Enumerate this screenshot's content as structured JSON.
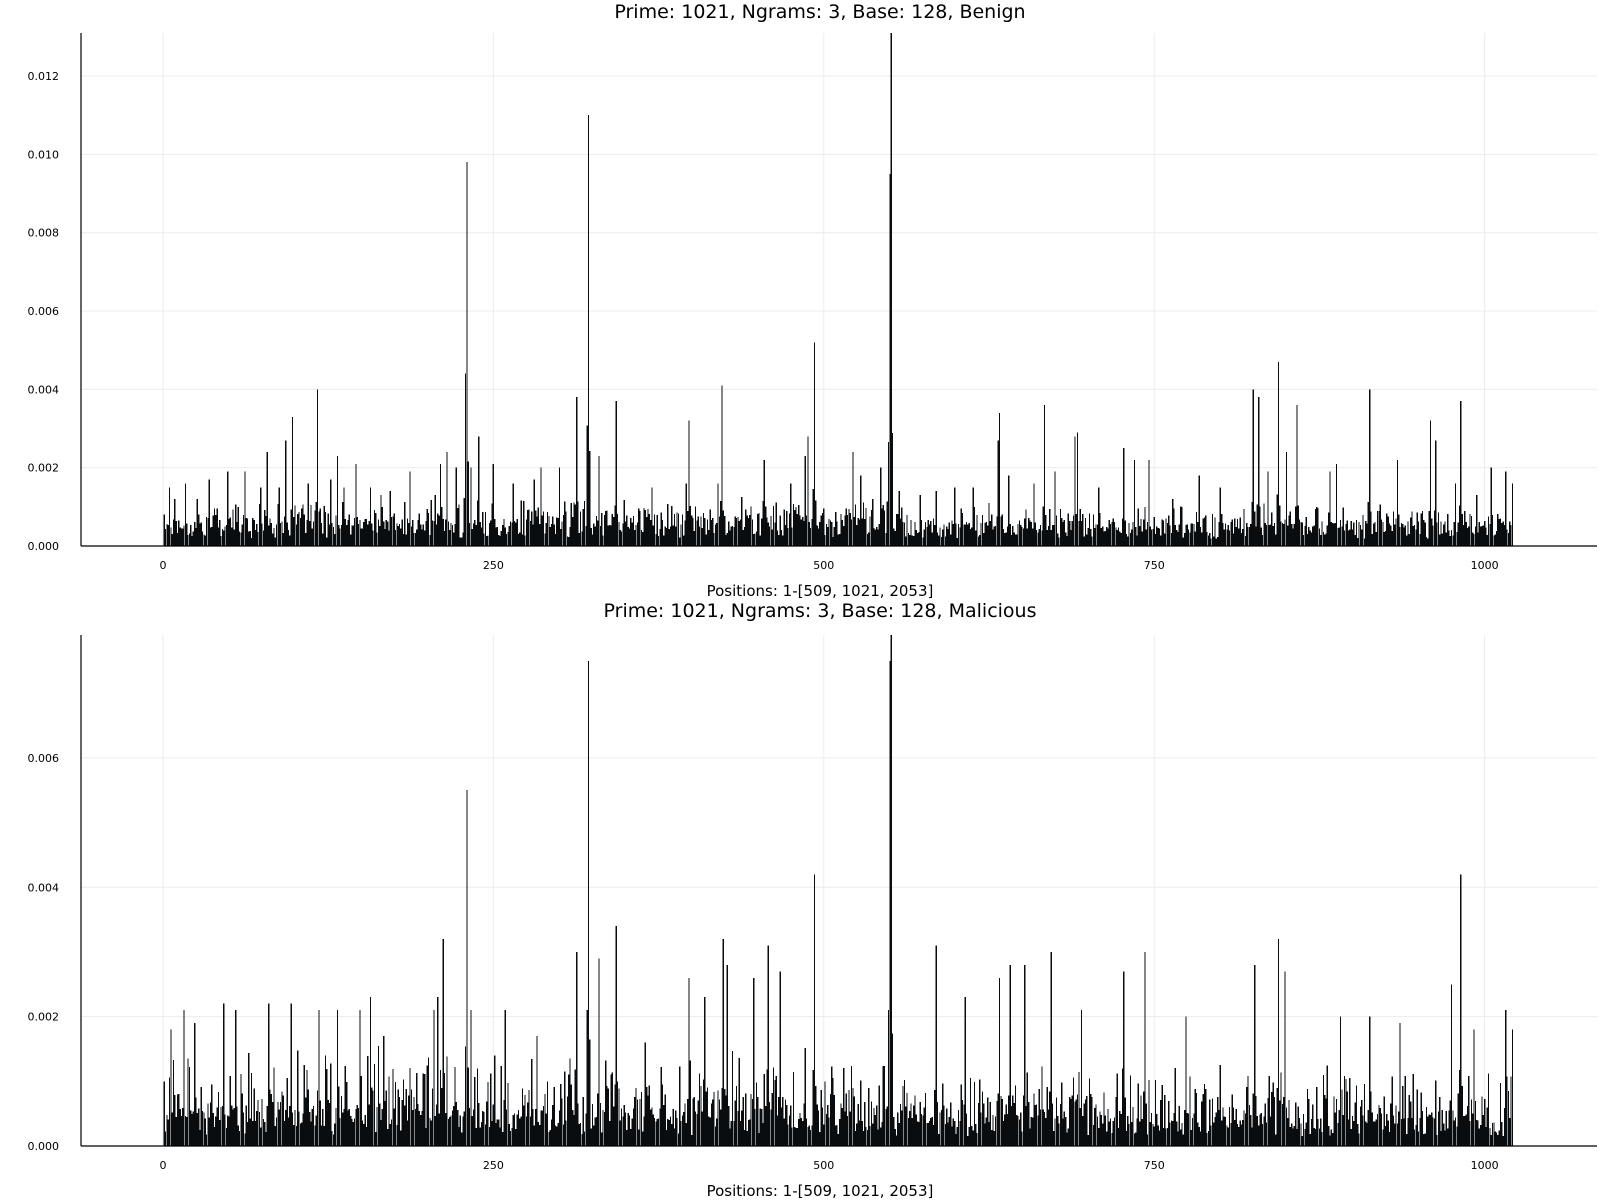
{
  "chart_data": [
    {
      "type": "bar",
      "title": "Prime: 1021, Ngrams: 3, Base: 128, Benign",
      "xlabel": "Positions: 1-[509, 1021, 2053]",
      "ylabel": "",
      "xlim": [
        -62,
        1085
      ],
      "ylim": [
        0,
        0.0131
      ],
      "xticks": [
        0,
        250,
        500,
        750,
        1000
      ],
      "xtick_labels": [
        "0",
        "250",
        "500",
        "750",
        "1000"
      ],
      "yticks": [
        0,
        0.002,
        0.004,
        0.006,
        0.008,
        0.01,
        0.012
      ],
      "ytick_labels": [
        "0.000",
        "0.002",
        "0.004",
        "0.006",
        "0.008",
        "0.010",
        "0.012"
      ],
      "grid": true,
      "legend": "none",
      "bar_color": "#0a0d10",
      "n_positions": 1021,
      "peaks": [
        [
          1,
          0.0008
        ],
        [
          5,
          0.0015
        ],
        [
          9,
          0.0012
        ],
        [
          17,
          0.0016
        ],
        [
          26,
          0.0012
        ],
        [
          35,
          0.0017
        ],
        [
          49,
          0.0019
        ],
        [
          62,
          0.0019
        ],
        [
          74,
          0.0015
        ],
        [
          79,
          0.0024
        ],
        [
          88,
          0.0015
        ],
        [
          93,
          0.0027
        ],
        [
          98,
          0.0033
        ],
        [
          110,
          0.0016
        ],
        [
          117,
          0.004
        ],
        [
          127,
          0.0017
        ],
        [
          132,
          0.0023
        ],
        [
          137,
          0.0015
        ],
        [
          146,
          0.0021
        ],
        [
          157,
          0.0015
        ],
        [
          165,
          0.0013
        ],
        [
          172,
          0.0014
        ],
        [
          187,
          0.0019
        ],
        [
          206,
          0.0013
        ],
        [
          210,
          0.0021
        ],
        [
          215,
          0.0024
        ],
        [
          222,
          0.002
        ],
        [
          229,
          0.0044
        ],
        [
          230,
          0.0098
        ],
        [
          233,
          0.002
        ],
        [
          239,
          0.0028
        ],
        [
          250,
          0.0021
        ],
        [
          265,
          0.0016
        ],
        [
          281,
          0.0017
        ],
        [
          286,
          0.002
        ],
        [
          300,
          0.002
        ],
        [
          313,
          0.0038
        ],
        [
          322,
          0.011
        ],
        [
          330,
          0.0023
        ],
        [
          343,
          0.0037
        ],
        [
          370,
          0.0015
        ],
        [
          396,
          0.0016
        ],
        [
          398,
          0.0032
        ],
        [
          420,
          0.0016
        ],
        [
          423,
          0.0041
        ],
        [
          455,
          0.0022
        ],
        [
          475,
          0.0016
        ],
        [
          486,
          0.0023
        ],
        [
          488,
          0.0028
        ],
        [
          493,
          0.0052
        ],
        [
          522,
          0.0024
        ],
        [
          528,
          0.0018
        ],
        [
          543,
          0.002
        ],
        [
          550,
          0.0095
        ],
        [
          551,
          0.0131
        ],
        [
          557,
          0.0014
        ],
        [
          573,
          0.0013
        ],
        [
          585,
          0.0014
        ],
        [
          599,
          0.0015
        ],
        [
          613,
          0.0015
        ],
        [
          625,
          0.0011
        ],
        [
          632,
          0.0027
        ],
        [
          633,
          0.0034
        ],
        [
          640,
          0.0018
        ],
        [
          659,
          0.0016
        ],
        [
          667,
          0.0036
        ],
        [
          675,
          0.0019
        ],
        [
          690,
          0.0028
        ],
        [
          692,
          0.0029
        ],
        [
          708,
          0.0015
        ],
        [
          727,
          0.0025
        ],
        [
          735,
          0.0022
        ],
        [
          746,
          0.0022
        ],
        [
          764,
          0.0012
        ],
        [
          771,
          0.001
        ],
        [
          784,
          0.0018
        ],
        [
          800,
          0.0015
        ],
        [
          825,
          0.004
        ],
        [
          829,
          0.0038
        ],
        [
          836,
          0.0019
        ],
        [
          844,
          0.0047
        ],
        [
          850,
          0.0024
        ],
        [
          858,
          0.0036
        ],
        [
          883,
          0.0019
        ],
        [
          888,
          0.0021
        ],
        [
          913,
          0.004
        ],
        [
          934,
          0.0022
        ],
        [
          959,
          0.0032
        ],
        [
          963,
          0.0027
        ],
        [
          978,
          0.0016
        ],
        [
          982,
          0.0037
        ],
        [
          994,
          0.0013
        ],
        [
          1005,
          0.002
        ],
        [
          1016,
          0.0019
        ],
        [
          1021,
          0.0016
        ]
      ],
      "noise": {
        "base": 0.00055,
        "amp": 0.0006,
        "seed": 17,
        "regions": [
          [
            0,
            290,
            1.0
          ],
          [
            290,
            560,
            1.1
          ],
          [
            560,
            1021,
            0.9
          ]
        ]
      }
    },
    {
      "type": "bar",
      "title": "Prime: 1021, Ngrams: 3, Base: 128, Malicious",
      "xlabel": "Positions: 1-[509, 1021, 2053]",
      "ylabel": "",
      "xlim": [
        -62,
        1085
      ],
      "ylim": [
        0,
        0.0079
      ],
      "xticks": [
        0,
        250,
        500,
        750,
        1000
      ],
      "xtick_labels": [
        "0",
        "250",
        "500",
        "750",
        "1000"
      ],
      "yticks": [
        0,
        0.002,
        0.004,
        0.006
      ],
      "ytick_labels": [
        "0.000",
        "0.002",
        "0.004",
        "0.006"
      ],
      "grid": true,
      "legend": "none",
      "bar_color": "#0a0d10",
      "n_positions": 1021,
      "peaks": [
        [
          1,
          0.001
        ],
        [
          6,
          0.0018
        ],
        [
          16,
          0.0021
        ],
        [
          24,
          0.0019
        ],
        [
          46,
          0.0022
        ],
        [
          55,
          0.0021
        ],
        [
          80,
          0.0022
        ],
        [
          97,
          0.0022
        ],
        [
          118,
          0.0021
        ],
        [
          132,
          0.0021
        ],
        [
          149,
          0.0021
        ],
        [
          157,
          0.0023
        ],
        [
          167,
          0.0017
        ],
        [
          205,
          0.0021
        ],
        [
          208,
          0.0023
        ],
        [
          212,
          0.0032
        ],
        [
          230,
          0.0055
        ],
        [
          233,
          0.0021
        ],
        [
          259,
          0.0021
        ],
        [
          283,
          0.0017
        ],
        [
          313,
          0.003
        ],
        [
          322,
          0.0075
        ],
        [
          330,
          0.0029
        ],
        [
          343,
          0.0034
        ],
        [
          365,
          0.0016
        ],
        [
          398,
          0.0026
        ],
        [
          410,
          0.0023
        ],
        [
          424,
          0.0032
        ],
        [
          427,
          0.0028
        ],
        [
          447,
          0.0026
        ],
        [
          458,
          0.0031
        ],
        [
          467,
          0.0027
        ],
        [
          493,
          0.0042
        ],
        [
          550,
          0.0075
        ],
        [
          551,
          0.0079
        ],
        [
          585,
          0.0031
        ],
        [
          607,
          0.0023
        ],
        [
          633,
          0.0026
        ],
        [
          641,
          0.0028
        ],
        [
          652,
          0.0028
        ],
        [
          672,
          0.003
        ],
        [
          695,
          0.0021
        ],
        [
          727,
          0.0027
        ],
        [
          743,
          0.003
        ],
        [
          774,
          0.002
        ],
        [
          826,
          0.0028
        ],
        [
          844,
          0.0032
        ],
        [
          849,
          0.0027
        ],
        [
          891,
          0.002
        ],
        [
          913,
          0.002
        ],
        [
          936,
          0.0019
        ],
        [
          975,
          0.0025
        ],
        [
          982,
          0.0042
        ],
        [
          992,
          0.0018
        ],
        [
          1016,
          0.0021
        ],
        [
          1021,
          0.0018
        ]
      ],
      "noise": {
        "base": 0.0004,
        "amp": 0.00085,
        "seed": 91,
        "regions": [
          [
            0,
            200,
            1.2
          ],
          [
            200,
            560,
            1.15
          ],
          [
            560,
            1021,
            1.0
          ]
        ]
      }
    }
  ]
}
